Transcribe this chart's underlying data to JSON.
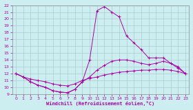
{
  "title": "",
  "xlabel": "Windchill (Refroidissement éolien,°C)",
  "xlim": [
    -0.5,
    23.5
  ],
  "ylim": [
    9,
    22
  ],
  "yticks": [
    9,
    10,
    11,
    12,
    13,
    14,
    15,
    16,
    17,
    18,
    19,
    20,
    21,
    22
  ],
  "xticks": [
    0,
    1,
    2,
    3,
    4,
    5,
    6,
    7,
    8,
    9,
    10,
    11,
    12,
    13,
    14,
    15,
    16,
    17,
    18,
    19,
    20,
    21,
    22,
    23
  ],
  "background_color": "#cceef0",
  "line_color": "#aa00aa",
  "grid_color": "#aacccc",
  "curve1_x": [
    0,
    1,
    2,
    3,
    4,
    5,
    6,
    7,
    8,
    9,
    10,
    11,
    12,
    13,
    14,
    15,
    16,
    17,
    18,
    19,
    20,
    21,
    22,
    23
  ],
  "curve1_y": [
    12.0,
    11.5,
    11.2,
    11.0,
    10.8,
    10.5,
    10.3,
    10.2,
    10.5,
    11.0,
    11.3,
    11.5,
    11.8,
    12.0,
    12.2,
    12.3,
    12.4,
    12.5,
    12.5,
    12.6,
    12.6,
    12.5,
    12.3,
    12.0
  ],
  "curve2_x": [
    0,
    1,
    2,
    3,
    4,
    5,
    6,
    7,
    8,
    9,
    10,
    11,
    12,
    13,
    14,
    15,
    16,
    17,
    18,
    19,
    20,
    21,
    22,
    23
  ],
  "curve2_y": [
    12.0,
    11.5,
    10.8,
    10.3,
    10.0,
    9.5,
    9.3,
    9.2,
    9.7,
    10.8,
    11.5,
    12.5,
    13.2,
    13.8,
    14.0,
    14.0,
    13.8,
    13.5,
    13.3,
    13.5,
    13.8,
    13.5,
    13.0,
    12.0
  ],
  "curve3_x": [
    0,
    1,
    2,
    3,
    4,
    5,
    6,
    7,
    8,
    9,
    10,
    11,
    12,
    13,
    14,
    15,
    16,
    17,
    18,
    19,
    20,
    21,
    22,
    23
  ],
  "curve3_y": [
    12.0,
    11.5,
    10.8,
    10.3,
    10.0,
    9.5,
    9.3,
    9.2,
    9.7,
    10.8,
    14.0,
    21.2,
    21.8,
    21.0,
    20.3,
    17.5,
    16.5,
    15.5,
    14.3,
    14.3,
    14.3,
    13.5,
    12.8,
    12.0
  ]
}
